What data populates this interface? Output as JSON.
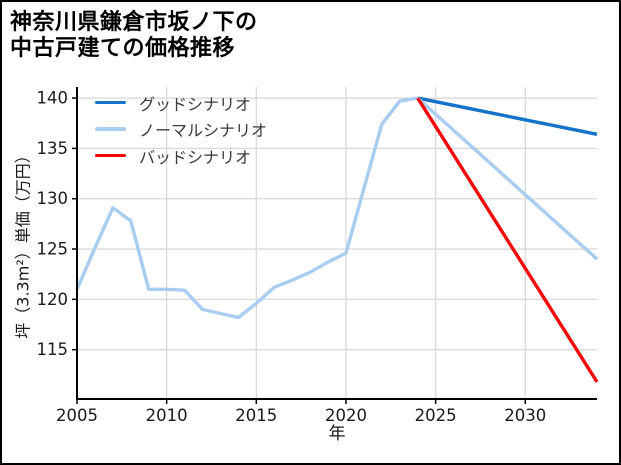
{
  "chart_data": {
    "type": "line",
    "title_lines": [
      "神奈川県鎌倉市坂ノ下の",
      "中古戸建ての価格推移"
    ],
    "xlabel": "年",
    "ylabel": "坪（3.3m²）単価（万円）",
    "xlim": [
      2005,
      2034
    ],
    "ylim": [
      110.1,
      141.1
    ],
    "x_ticks": [
      2005,
      2010,
      2015,
      2020,
      2025,
      2030
    ],
    "y_ticks": [
      115,
      120,
      125,
      130,
      135,
      140
    ],
    "grid": true,
    "legend_position": "upper-left",
    "colors": {
      "background": "#ffffff",
      "border": "#000000",
      "grid": "#d9d9d9",
      "axis": "#000000",
      "tick_label": "#1a1a1a",
      "legend_text": "#3a3a3a"
    },
    "series": [
      {
        "name": "グッドシナリオ",
        "color": "#1472c8",
        "x": [
          2024,
          2034
        ],
        "values": [
          140.0,
          136.4
        ]
      },
      {
        "name": "ノーマルシナリオ",
        "color": "#a8cdf0",
        "x": [
          2005,
          2006,
          2007,
          2008,
          2009,
          2010,
          2011,
          2012,
          2013,
          2014,
          2015,
          2016,
          2017,
          2018,
          2019,
          2020,
          2021,
          2022,
          2023,
          2024,
          2034
        ],
        "values": [
          121.0,
          125.1,
          129.1,
          127.8,
          121.0,
          121.0,
          120.9,
          119.0,
          118.6,
          118.2,
          119.6,
          121.2,
          121.9,
          122.7,
          123.7,
          124.6,
          131.0,
          137.4,
          139.7,
          140.0,
          124.0
        ]
      },
      {
        "name": "バッドシナリオ",
        "color": "#f50505",
        "x": [
          2024,
          2034
        ],
        "values": [
          140.0,
          111.8
        ]
      }
    ]
  }
}
